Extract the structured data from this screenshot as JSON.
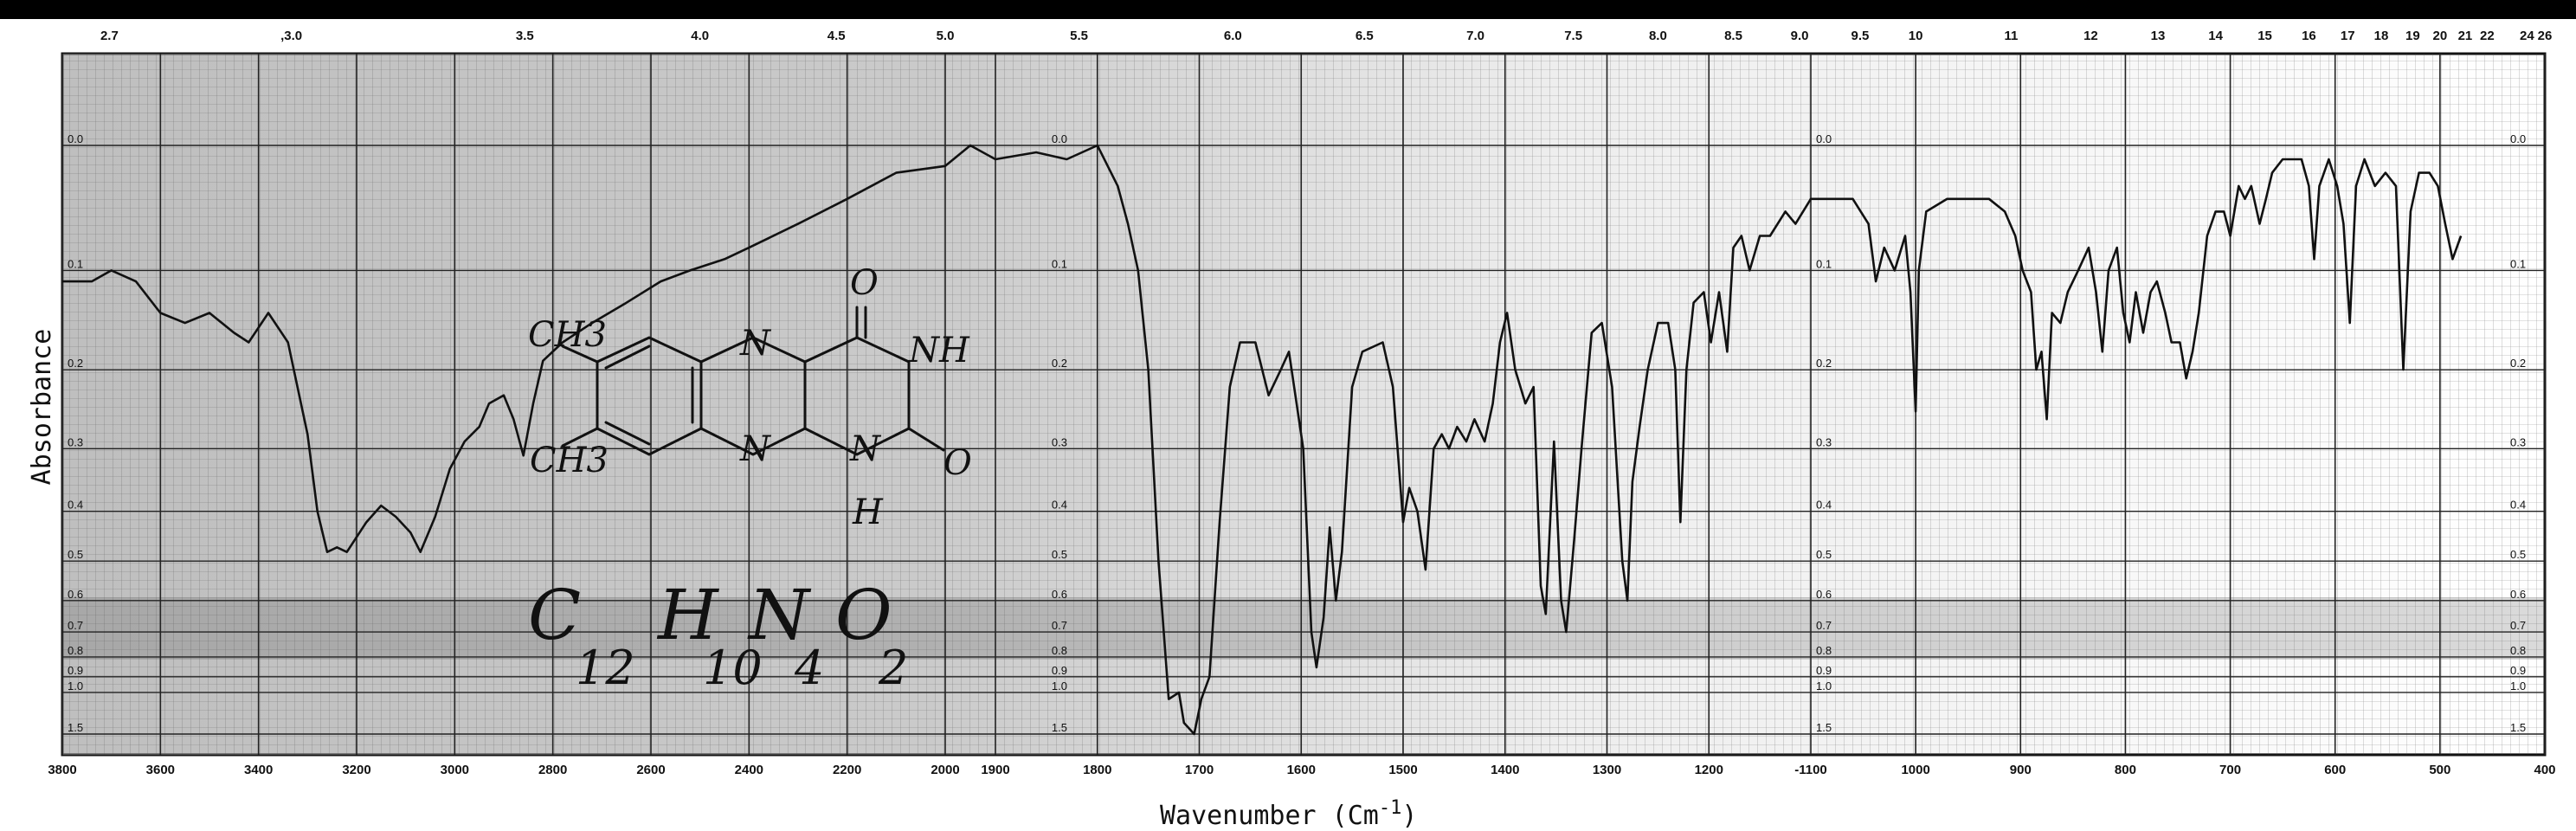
{
  "chart_data": {
    "type": "line",
    "title": "",
    "xlabel": "Wavenumber (Cm",
    "xlabel_sup": "-1",
    "xlabel_close": ")",
    "ylabel": "Absorbance",
    "xlim": [
      3800,
      400
    ],
    "ylim": [
      1.5,
      0.0
    ],
    "grid": true,
    "wavenumber_ticks": [
      {
        "wn": 3800,
        "label": "3800"
      },
      {
        "wn": 3600,
        "label": "3600"
      },
      {
        "wn": 3400,
        "label": "3400"
      },
      {
        "wn": 3200,
        "label": "3200"
      },
      {
        "wn": 3000,
        "label": "3000"
      },
      {
        "wn": 2800,
        "label": "2800"
      },
      {
        "wn": 2600,
        "label": "2600"
      },
      {
        "wn": 2400,
        "label": "2400"
      },
      {
        "wn": 2200,
        "label": "2200"
      },
      {
        "wn": 2000,
        "label": "2000"
      },
      {
        "wn": 1900,
        "label": "1900"
      },
      {
        "wn": 1800,
        "label": "1800"
      },
      {
        "wn": 1700,
        "label": "1700"
      },
      {
        "wn": 1600,
        "label": "1600"
      },
      {
        "wn": 1500,
        "label": "1500"
      },
      {
        "wn": 1400,
        "label": "1400"
      },
      {
        "wn": 1300,
        "label": "1300"
      },
      {
        "wn": 1200,
        "label": "1200"
      },
      {
        "wn": 1100,
        "label": "-1100"
      },
      {
        "wn": 1000,
        "label": "1000"
      },
      {
        "wn": 900,
        "label": "900"
      },
      {
        "wn": 800,
        "label": "800"
      },
      {
        "wn": 700,
        "label": "700"
      },
      {
        "wn": 600,
        "label": "600"
      },
      {
        "wn": 500,
        "label": "500"
      },
      {
        "wn": 400,
        "label": "400"
      }
    ],
    "micron_ticks": [
      {
        "wn": 3704,
        "label": "2.7"
      },
      {
        "wn": 3333,
        "label": ",3.0"
      },
      {
        "wn": 2857,
        "label": "3.5"
      },
      {
        "wn": 2500,
        "label": "4.0"
      },
      {
        "wn": 2222,
        "label": "4.5"
      },
      {
        "wn": 2000,
        "label": "5.0"
      },
      {
        "wn": 1818,
        "label": "5.5"
      },
      {
        "wn": 1667,
        "label": "6.0"
      },
      {
        "wn": 1538,
        "label": "6.5"
      },
      {
        "wn": 1429,
        "label": "7.0"
      },
      {
        "wn": 1333,
        "label": "7.5"
      },
      {
        "wn": 1250,
        "label": "8.0"
      },
      {
        "wn": 1176,
        "label": "8.5"
      },
      {
        "wn": 1111,
        "label": "9.0"
      },
      {
        "wn": 1053,
        "label": "9.5"
      },
      {
        "wn": 1000,
        "label": "10"
      },
      {
        "wn": 909,
        "label": "11"
      },
      {
        "wn": 833,
        "label": "12"
      },
      {
        "wn": 769,
        "label": "13"
      },
      {
        "wn": 714,
        "label": "14"
      },
      {
        "wn": 667,
        "label": "15"
      },
      {
        "wn": 625,
        "label": "16"
      },
      {
        "wn": 588,
        "label": "17"
      },
      {
        "wn": 556,
        "label": "18"
      },
      {
        "wn": 526,
        "label": "19"
      },
      {
        "wn": 500,
        "label": "20"
      },
      {
        "wn": 476,
        "label": "21"
      },
      {
        "wn": 455,
        "label": "22"
      },
      {
        "wn": 417,
        "label": "24"
      },
      {
        "wn": 385,
        "label": "26"
      }
    ],
    "absorbance_ticks": [
      {
        "v": 0.0,
        "label": "0.0"
      },
      {
        "v": 0.1,
        "label": "0.1"
      },
      {
        "v": 0.2,
        "label": "0.2"
      },
      {
        "v": 0.3,
        "label": "0.3"
      },
      {
        "v": 0.4,
        "label": "0.4"
      },
      {
        "v": 0.5,
        "label": "0.5"
      },
      {
        "v": 0.6,
        "label": "0.6"
      },
      {
        "v": 0.7,
        "label": "0.7"
      },
      {
        "v": 0.8,
        "label": "0.8"
      },
      {
        "v": 0.9,
        "label": "0.9"
      },
      {
        "v": 1.0,
        "label": "1.0"
      },
      {
        "v": 1.5,
        "label": "1.5"
      }
    ],
    "absorbance_label_at_wn": [
      3800,
      1850,
      1100,
      400
    ],
    "series": [
      {
        "points": [
          [
            3800,
            0.11
          ],
          [
            3740,
            0.11
          ],
          [
            3700,
            0.1
          ],
          [
            3650,
            0.11
          ],
          [
            3600,
            0.14
          ],
          [
            3550,
            0.15
          ],
          [
            3500,
            0.14
          ],
          [
            3450,
            0.16
          ],
          [
            3420,
            0.17
          ],
          [
            3380,
            0.14
          ],
          [
            3340,
            0.17
          ],
          [
            3300,
            0.28
          ],
          [
            3280,
            0.4
          ],
          [
            3260,
            0.48
          ],
          [
            3240,
            0.47
          ],
          [
            3220,
            0.48
          ],
          [
            3180,
            0.42
          ],
          [
            3150,
            0.39
          ],
          [
            3120,
            0.41
          ],
          [
            3090,
            0.44
          ],
          [
            3070,
            0.48
          ],
          [
            3040,
            0.41
          ],
          [
            3010,
            0.33
          ],
          [
            2980,
            0.29
          ],
          [
            2950,
            0.27
          ],
          [
            2930,
            0.24
          ],
          [
            2900,
            0.23
          ],
          [
            2880,
            0.26
          ],
          [
            2860,
            0.31
          ],
          [
            2840,
            0.24
          ],
          [
            2820,
            0.19
          ],
          [
            2780,
            0.17
          ],
          [
            2720,
            0.15
          ],
          [
            2650,
            0.13
          ],
          [
            2580,
            0.11
          ],
          [
            2520,
            0.1
          ],
          [
            2450,
            0.09
          ],
          [
            2400,
            0.08
          ],
          [
            2300,
            0.06
          ],
          [
            2200,
            0.04
          ],
          [
            2100,
            0.02
          ],
          [
            2000,
            0.015
          ],
          [
            1950,
            0.0
          ],
          [
            1900,
            0.01
          ],
          [
            1860,
            0.005
          ],
          [
            1830,
            0.01
          ],
          [
            1800,
            0.0
          ],
          [
            1780,
            0.03
          ],
          [
            1770,
            0.06
          ],
          [
            1760,
            0.1
          ],
          [
            1750,
            0.2
          ],
          [
            1740,
            0.5
          ],
          [
            1730,
            1.05
          ],
          [
            1720,
            1.0
          ],
          [
            1715,
            1.3
          ],
          [
            1705,
            1.5
          ],
          [
            1698,
            1.05
          ],
          [
            1690,
            0.9
          ],
          [
            1680,
            0.42
          ],
          [
            1670,
            0.22
          ],
          [
            1660,
            0.17
          ],
          [
            1645,
            0.17
          ],
          [
            1632,
            0.23
          ],
          [
            1620,
            0.2
          ],
          [
            1612,
            0.18
          ],
          [
            1598,
            0.3
          ],
          [
            1590,
            0.7
          ],
          [
            1585,
            0.85
          ],
          [
            1578,
            0.65
          ],
          [
            1572,
            0.43
          ],
          [
            1566,
            0.6
          ],
          [
            1560,
            0.48
          ],
          [
            1550,
            0.22
          ],
          [
            1540,
            0.18
          ],
          [
            1520,
            0.17
          ],
          [
            1510,
            0.22
          ],
          [
            1500,
            0.42
          ],
          [
            1494,
            0.36
          ],
          [
            1486,
            0.4
          ],
          [
            1478,
            0.52
          ],
          [
            1470,
            0.3
          ],
          [
            1462,
            0.28
          ],
          [
            1455,
            0.3
          ],
          [
            1447,
            0.27
          ],
          [
            1438,
            0.29
          ],
          [
            1430,
            0.26
          ],
          [
            1420,
            0.29
          ],
          [
            1412,
            0.24
          ],
          [
            1405,
            0.17
          ],
          [
            1398,
            0.14
          ],
          [
            1390,
            0.2
          ],
          [
            1380,
            0.24
          ],
          [
            1372,
            0.22
          ],
          [
            1365,
            0.56
          ],
          [
            1360,
            0.64
          ],
          [
            1352,
            0.29
          ],
          [
            1345,
            0.6
          ],
          [
            1340,
            0.7
          ],
          [
            1332,
            0.45
          ],
          [
            1325,
            0.3
          ],
          [
            1315,
            0.16
          ],
          [
            1305,
            0.15
          ],
          [
            1295,
            0.22
          ],
          [
            1285,
            0.5
          ],
          [
            1280,
            0.6
          ],
          [
            1275,
            0.35
          ],
          [
            1268,
            0.27
          ],
          [
            1260,
            0.2
          ],
          [
            1250,
            0.15
          ],
          [
            1240,
            0.15
          ],
          [
            1233,
            0.2
          ],
          [
            1228,
            0.42
          ],
          [
            1222,
            0.2
          ],
          [
            1215,
            0.13
          ],
          [
            1205,
            0.12
          ],
          [
            1198,
            0.17
          ],
          [
            1190,
            0.12
          ],
          [
            1182,
            0.18
          ],
          [
            1176,
            0.08
          ],
          [
            1168,
            0.07
          ],
          [
            1160,
            0.1
          ],
          [
            1150,
            0.07
          ],
          [
            1140,
            0.07
          ],
          [
            1125,
            0.05
          ],
          [
            1115,
            0.06
          ],
          [
            1100,
            0.04
          ],
          [
            1080,
            0.04
          ],
          [
            1060,
            0.04
          ],
          [
            1045,
            0.06
          ],
          [
            1038,
            0.11
          ],
          [
            1030,
            0.08
          ],
          [
            1020,
            0.1
          ],
          [
            1010,
            0.07
          ],
          [
            1005,
            0.12
          ],
          [
            1000,
            0.25
          ],
          [
            997,
            0.1
          ],
          [
            990,
            0.05
          ],
          [
            970,
            0.04
          ],
          [
            950,
            0.04
          ],
          [
            930,
            0.04
          ],
          [
            915,
            0.05
          ],
          [
            905,
            0.07
          ],
          [
            898,
            0.1
          ],
          [
            890,
            0.12
          ],
          [
            885,
            0.2
          ],
          [
            880,
            0.18
          ],
          [
            875,
            0.26
          ],
          [
            870,
            0.14
          ],
          [
            862,
            0.15
          ],
          [
            855,
            0.12
          ],
          [
            845,
            0.1
          ],
          [
            835,
            0.08
          ],
          [
            828,
            0.12
          ],
          [
            822,
            0.18
          ],
          [
            816,
            0.1
          ],
          [
            808,
            0.08
          ],
          [
            802,
            0.14
          ],
          [
            796,
            0.17
          ],
          [
            790,
            0.12
          ],
          [
            783,
            0.16
          ],
          [
            776,
            0.12
          ],
          [
            770,
            0.11
          ],
          [
            762,
            0.14
          ],
          [
            756,
            0.17
          ],
          [
            748,
            0.17
          ],
          [
            742,
            0.21
          ],
          [
            736,
            0.18
          ],
          [
            730,
            0.14
          ],
          [
            722,
            0.07
          ],
          [
            714,
            0.05
          ],
          [
            706,
            0.05
          ],
          [
            700,
            0.07
          ],
          [
            692,
            0.03
          ],
          [
            686,
            0.04
          ],
          [
            680,
            0.03
          ],
          [
            672,
            0.06
          ],
          [
            666,
            0.04
          ],
          [
            660,
            0.02
          ],
          [
            650,
            0.01
          ],
          [
            640,
            0.01
          ],
          [
            632,
            0.01
          ],
          [
            625,
            0.03
          ],
          [
            620,
            0.09
          ],
          [
            615,
            0.03
          ],
          [
            606,
            0.01
          ],
          [
            598,
            0.03
          ],
          [
            592,
            0.06
          ],
          [
            586,
            0.15
          ],
          [
            580,
            0.03
          ],
          [
            572,
            0.01
          ],
          [
            562,
            0.03
          ],
          [
            552,
            0.02
          ],
          [
            542,
            0.03
          ],
          [
            535,
            0.2
          ],
          [
            528,
            0.05
          ],
          [
            520,
            0.02
          ],
          [
            510,
            0.02
          ],
          [
            502,
            0.03
          ],
          [
            495,
            0.06
          ],
          [
            488,
            0.09
          ],
          [
            480,
            0.07
          ]
        ]
      }
    ]
  },
  "structure": {
    "atoms": {
      "o_top": "O",
      "nh_top": "NH",
      "ch3_top": "CH3",
      "ch3_bottom": "CH3",
      "n_ring_top": "N",
      "n_ring_bottom": "N",
      "n_amide": "N",
      "h_amide": "H",
      "o_right": "O"
    },
    "formula": {
      "c": "C",
      "c_n": "12",
      "h": "H",
      "h_n": "10",
      "n": "N",
      "n_n": "4",
      "o": "O",
      "o_n": "2"
    }
  }
}
